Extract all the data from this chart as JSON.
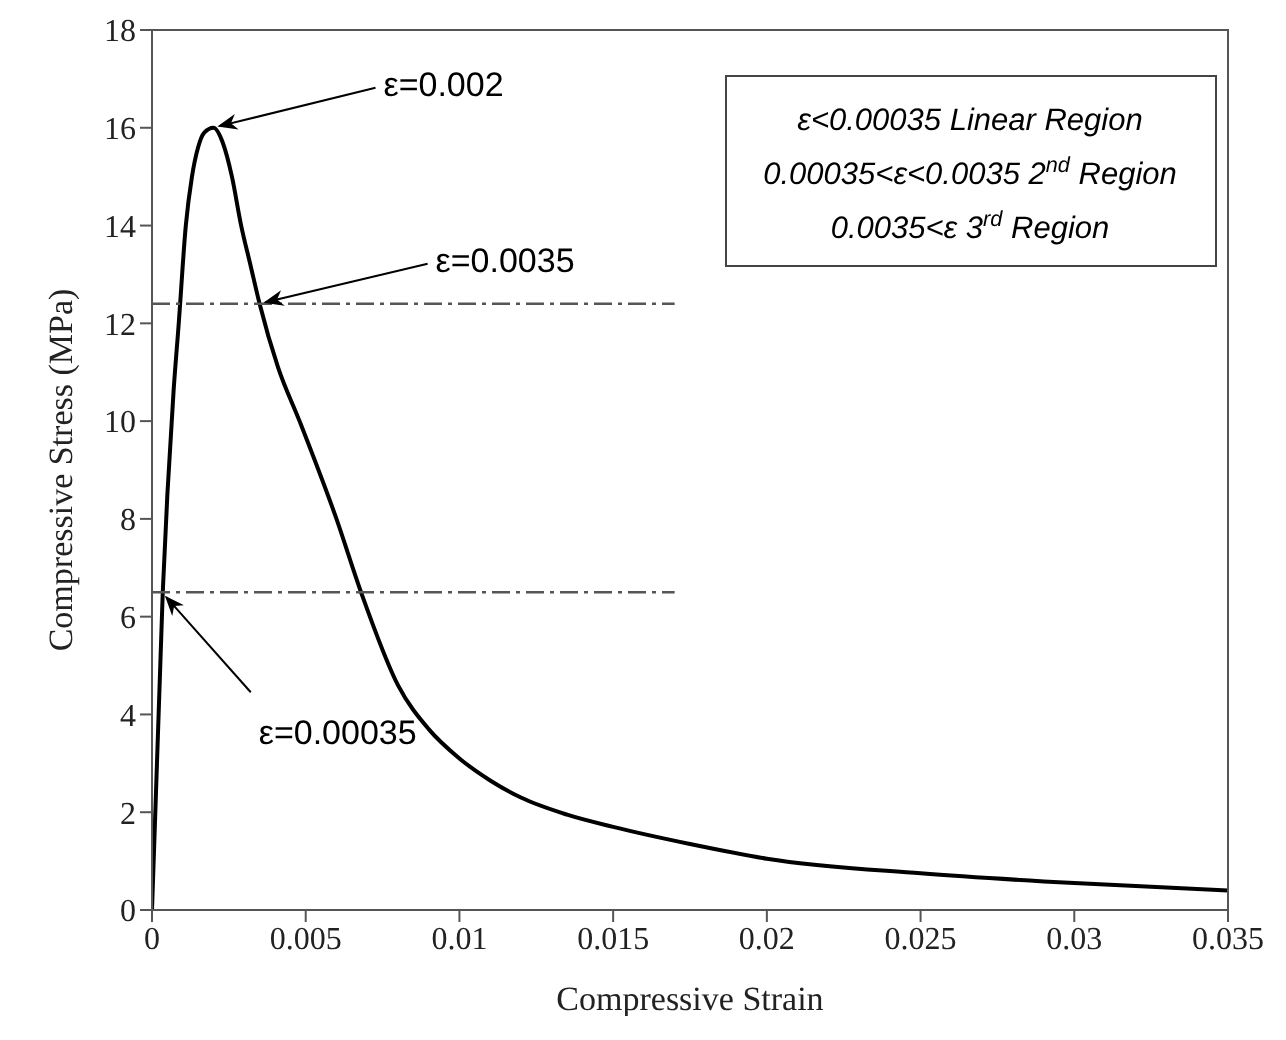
{
  "chart_data": {
    "type": "line",
    "xlabel": "Compressive Strain",
    "ylabel": "Compressive Stress (MPa)",
    "xlim": [
      0,
      0.035
    ],
    "xticks": [
      0,
      0.005,
      0.01,
      0.015,
      0.02,
      0.025,
      0.03,
      0.035
    ],
    "ylim": [
      0,
      18
    ],
    "yticks": [
      0,
      2,
      4,
      6,
      8,
      10,
      12,
      14,
      16,
      18
    ],
    "grid": false,
    "marker": "none",
    "series": [
      {
        "color": "#000000",
        "line_style": "solid",
        "x": [
          0,
          0.00035,
          0.0005,
          0.0007,
          0.00087,
          0.0011,
          0.0013,
          0.0015,
          0.0017,
          0.002,
          0.0023,
          0.0026,
          0.0029,
          0.0032,
          0.0035,
          0.0041,
          0.0048,
          0.006,
          0.0068,
          0.008,
          0.009,
          0.01,
          0.011,
          0.012,
          0.0135,
          0.015,
          0.0175,
          0.02,
          0.025,
          0.03,
          0.035
        ],
        "values": [
          0,
          6.5,
          8.5,
          10.6,
          12,
          14,
          15,
          15.6,
          15.9,
          16,
          15.7,
          15,
          14,
          13.2,
          12.4,
          11.1,
          10,
          8,
          6.5,
          4.6,
          3.7,
          3.1,
          2.65,
          2.3,
          1.95,
          1.7,
          1.35,
          1.05,
          0.75,
          0.55,
          0.4
        ]
      },
      {
        "color": "#555555",
        "line_style": "dashed",
        "x": [
          0,
          0.017
        ],
        "values": [
          12.4,
          12.4
        ]
      },
      {
        "color": "#555555",
        "line_style": "dashed",
        "x": [
          0,
          0.017
        ],
        "values": [
          6.5,
          6.5
        ]
      }
    ],
    "annotations": [
      {
        "text": "ε=0.002",
        "x": 0.002,
        "y": 16
      },
      {
        "text": "ε=0.0035",
        "x": 0.0035,
        "y": 12.4
      },
      {
        "text": "ε=0.00035",
        "x": 0.00035,
        "y": 6.5
      },
      "ε<0.00035 Linear Region",
      "0.00035<ε<0.0035 2$^{nd}$ Region",
      "0.0035<ε 3$^{rd}$ Region"
    ]
  }
}
